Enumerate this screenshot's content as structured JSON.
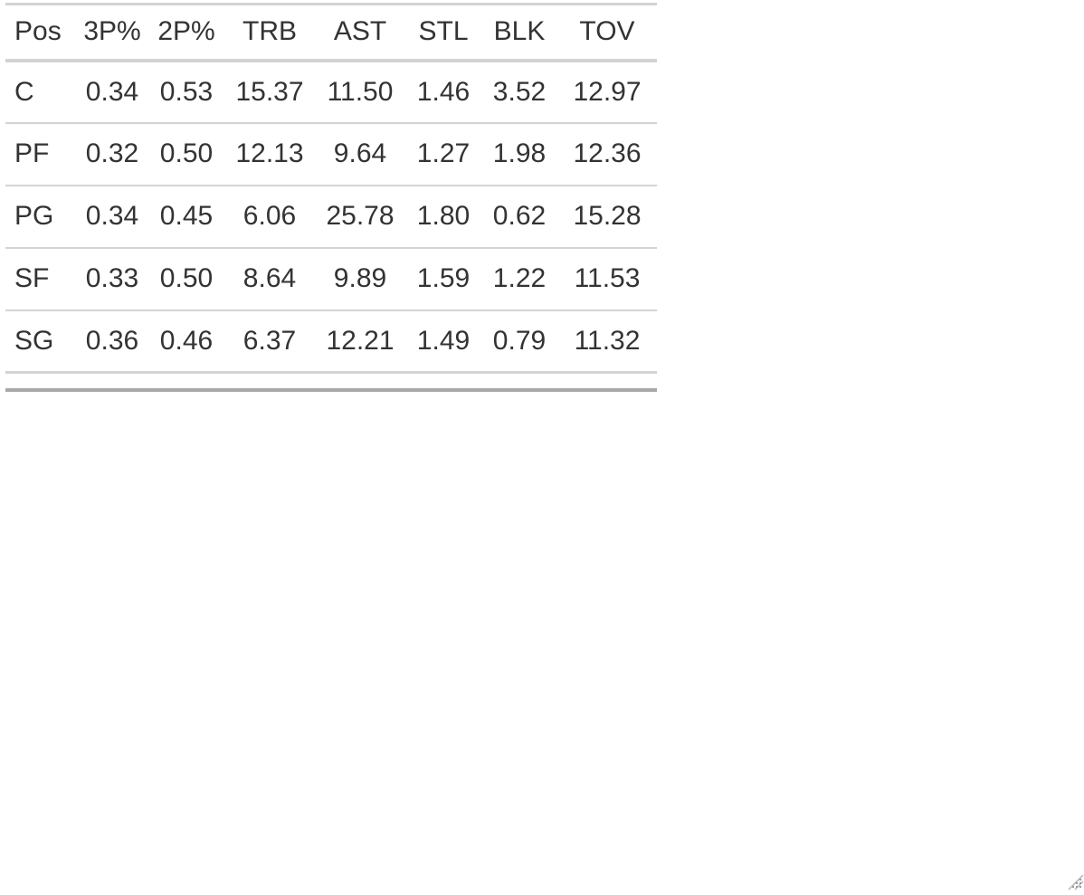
{
  "table": {
    "columns": [
      "Pos",
      "3P%",
      "2P%",
      "TRB",
      "AST",
      "STL",
      "BLK",
      "TOV"
    ],
    "rows": [
      [
        "C",
        "0.34",
        "0.53",
        "15.37",
        "11.50",
        "1.46",
        "3.52",
        "12.97"
      ],
      [
        "PF",
        "0.32",
        "0.50",
        "12.13",
        "9.64",
        "1.27",
        "1.98",
        "12.36"
      ],
      [
        "PG",
        "0.34",
        "0.45",
        "6.06",
        "25.78",
        "1.80",
        "0.62",
        "15.28"
      ],
      [
        "SF",
        "0.33",
        "0.50",
        "8.64",
        "9.89",
        "1.59",
        "1.22",
        "11.53"
      ],
      [
        "SG",
        "0.36",
        "0.46",
        "6.37",
        "12.21",
        "1.49",
        "0.79",
        "11.32"
      ]
    ]
  },
  "icons": {
    "resize_grip": "resize-grip-icon"
  },
  "colors": {
    "text": "#333333",
    "rule": "#d3d3d3",
    "bottom_rule": "#a8a8a8",
    "background": "#ffffff"
  }
}
